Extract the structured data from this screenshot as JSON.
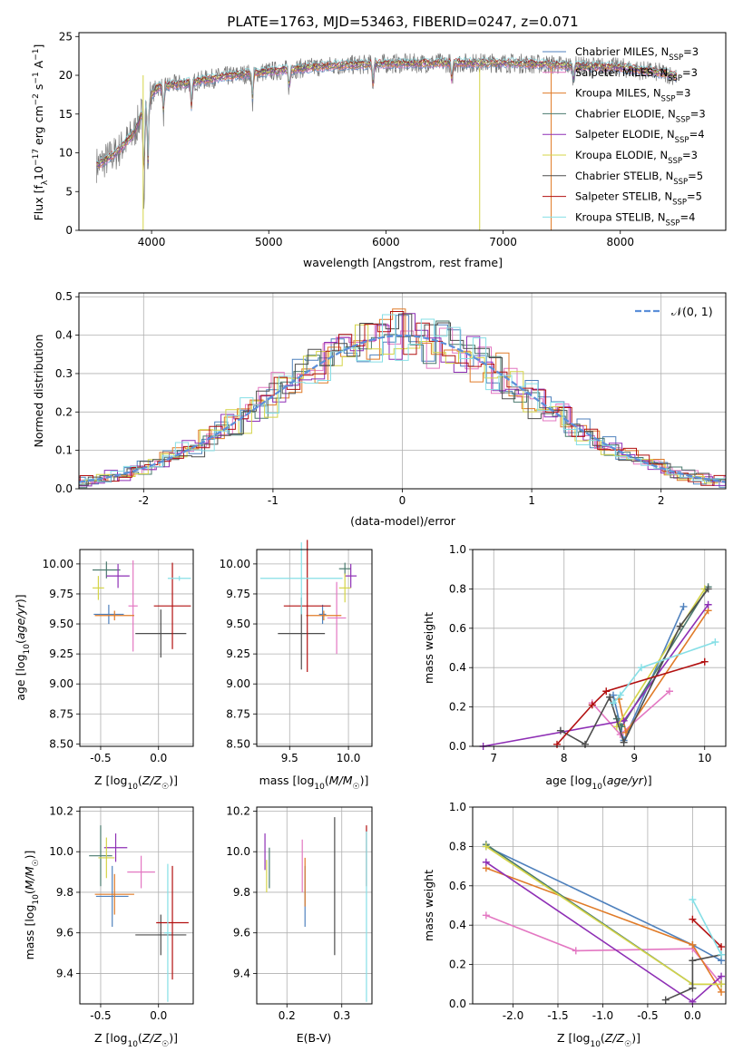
{
  "figure": {
    "title": "PLATE=1763, MJD=53463, FIBERID=0247, z=0.071"
  },
  "legend_models": [
    {
      "label": "Chabrier MILES, N",
      "sub": "SSP",
      "tail": "=3",
      "color": "#4f81bd"
    },
    {
      "label": "Salpeter MILES, N",
      "sub": "SSP",
      "tail": "=3",
      "color": "#e377c2"
    },
    {
      "label": "Kroupa MILES, N",
      "sub": "SSP",
      "tail": "=3",
      "color": "#e07b28"
    },
    {
      "label": "Chabrier ELODIE, N",
      "sub": "SSP",
      "tail": "=3",
      "color": "#4a7a6e"
    },
    {
      "label": "Salpeter ELODIE, N",
      "sub": "SSP",
      "tail": "=4",
      "color": "#8e2fb5"
    },
    {
      "label": "Kroupa ELODIE, N",
      "sub": "SSP",
      "tail": "=3",
      "color": "#d4d447"
    },
    {
      "label": "Chabrier STELIB, N",
      "sub": "SSP",
      "tail": "=5",
      "color": "#4d4d4d"
    },
    {
      "label": "Salpeter STELIB, N",
      "sub": "SSP",
      "tail": "=5",
      "color": "#b21010"
    },
    {
      "label": "Kroupa STELIB, N",
      "sub": "SSP",
      "tail": "=4",
      "color": "#86dfe6"
    }
  ],
  "chart_data": [
    {
      "id": "spectrum",
      "type": "line",
      "title": "PLATE=1763, MJD=53463, FIBERID=0247, z=0.071",
      "xlabel": "wavelength [Angstrom, rest frame]",
      "ylabel": "Flux [f_λ 10^-17 erg cm^-2 s^-1 A^-1]",
      "xlim": [
        3380,
        8900
      ],
      "ylim": [
        0,
        25.5
      ],
      "xticks": [
        4000,
        5000,
        6000,
        7000,
        8000
      ],
      "yticks": [
        0,
        5,
        10,
        15,
        20,
        25
      ],
      "continuum": {
        "x": [
          3550,
          3700,
          3850,
          3950,
          4050,
          4300,
          4600,
          5000,
          5500,
          6000,
          6500,
          7000,
          7400,
          7600,
          8000,
          8400,
          8500
        ],
        "y": [
          8.5,
          10.0,
          12.5,
          16.5,
          18.5,
          19.0,
          19.8,
          20.5,
          21.2,
          21.5,
          21.6,
          21.6,
          21.4,
          21.2,
          21.0,
          20.2,
          19.8
        ]
      },
      "absorption_features": [
        [
          3934,
          12
        ],
        [
          3969,
          10
        ],
        [
          4102,
          4
        ],
        [
          4340,
          4
        ],
        [
          4861,
          4
        ],
        [
          5175,
          3
        ],
        [
          5890,
          3
        ],
        [
          6563,
          3
        ],
        [
          7600,
          2
        ]
      ]
    },
    {
      "id": "residual_hist",
      "type": "histogram",
      "xlabel": "(data-model)/error",
      "ylabel": "Normed distribution",
      "xlim": [
        -2.5,
        2.5
      ],
      "ylim": [
        0,
        0.51
      ],
      "xticks": [
        -2,
        -1,
        0,
        1,
        2
      ],
      "yticks": [
        0.0,
        0.1,
        0.2,
        0.3,
        0.4,
        0.5
      ],
      "bin_width": 0.1,
      "series_name": "N(0,1)",
      "pdf_mean": 0,
      "pdf_sigma": 1
    },
    {
      "id": "age_vs_Z",
      "type": "errorbar",
      "xlabel": "Z [log10(Z/Z☉)]",
      "ylabel": "age [log10(age/yr)]",
      "xlim": [
        -0.68,
        0.3
      ],
      "ylim": [
        8.48,
        10.12
      ],
      "xticks": [
        -0.5,
        0.0
      ],
      "yticks": [
        8.5,
        8.75,
        9.0,
        9.25,
        9.5,
        9.75,
        10.0
      ],
      "points": [
        {
          "model": 0,
          "x": -0.43,
          "xerr": 0.13,
          "y": 9.58,
          "yerr": 0.08
        },
        {
          "model": 1,
          "x": -0.22,
          "xerr": 0.04,
          "y": 9.65,
          "yerr": 0.38
        },
        {
          "model": 2,
          "x": -0.38,
          "xerr": 0.17,
          "y": 9.57,
          "yerr": 0.04
        },
        {
          "model": 3,
          "x": -0.45,
          "xerr": 0.12,
          "y": 9.95,
          "yerr": 0.07
        },
        {
          "model": 4,
          "x": -0.35,
          "xerr": 0.1,
          "y": 9.9,
          "yerr": 0.1
        },
        {
          "model": 5,
          "x": -0.52,
          "xerr": 0.05,
          "y": 9.8,
          "yerr": 0.1
        },
        {
          "model": 6,
          "x": 0.02,
          "xerr": 0.22,
          "y": 9.42,
          "yerr": 0.2
        },
        {
          "model": 7,
          "x": 0.12,
          "xerr": 0.16,
          "y": 9.65,
          "yerr": 0.36
        },
        {
          "model": 8,
          "x": 0.18,
          "xerr": 0.1,
          "y": 9.88,
          "yerr": 0.02
        }
      ]
    },
    {
      "id": "age_vs_mass",
      "type": "errorbar",
      "xlabel": "mass [log10(M/M☉)]",
      "ylabel": "",
      "xlim": [
        9.22,
        10.2
      ],
      "ylim": [
        8.48,
        10.12
      ],
      "xticks": [
        9.5,
        10.0
      ],
      "yticks": [
        8.5,
        8.75,
        9.0,
        9.25,
        9.5,
        9.75,
        10.0
      ],
      "points": [
        {
          "model": 0,
          "x": 9.78,
          "xerr": 0.03,
          "y": 9.58,
          "yerr": 0.08
        },
        {
          "model": 1,
          "x": 9.9,
          "xerr": 0.08,
          "y": 9.55,
          "yerr": 0.3
        },
        {
          "model": 2,
          "x": 9.79,
          "xerr": 0.15,
          "y": 9.57,
          "yerr": 0.04
        },
        {
          "model": 3,
          "x": 9.97,
          "xerr": 0.05,
          "y": 9.96,
          "yerr": 0.05
        },
        {
          "model": 4,
          "x": 10.02,
          "xerr": 0.05,
          "y": 9.9,
          "yerr": 0.1
        },
        {
          "model": 5,
          "x": 9.97,
          "xerr": 0.05,
          "y": 9.8,
          "yerr": 0.12
        },
        {
          "model": 6,
          "x": 9.6,
          "xerr": 0.2,
          "y": 9.42,
          "yerr": 0.3
        },
        {
          "model": 7,
          "x": 9.65,
          "xerr": 0.2,
          "y": 9.65,
          "yerr": 0.55
        },
        {
          "model": 8,
          "x": 9.6,
          "xerr": 0.35,
          "y": 9.88,
          "yerr": 0.3
        }
      ]
    },
    {
      "id": "massweight_vs_age",
      "type": "line",
      "xlabel": "age [log10(age/yr)]",
      "ylabel": "mass weight",
      "xlim": [
        6.7,
        10.3
      ],
      "ylim": [
        0,
        1.0
      ],
      "xticks": [
        7,
        8,
        9,
        10
      ],
      "yticks": [
        0.0,
        0.2,
        0.4,
        0.6,
        0.8,
        1.0
      ],
      "series": [
        {
          "model": 0,
          "x": [
            8.7,
            8.85,
            9.7
          ],
          "y": [
            0.26,
            0.03,
            0.71
          ]
        },
        {
          "model": 1,
          "x": [
            8.4,
            8.8,
            9.5
          ],
          "y": [
            0.22,
            0.06,
            0.28
          ]
        },
        {
          "model": 2,
          "x": [
            8.78,
            8.88,
            10.05
          ],
          "y": [
            0.24,
            0.07,
            0.69
          ]
        },
        {
          "model": 3,
          "x": [
            8.75,
            8.82,
            10.05
          ],
          "y": [
            0.14,
            0.1,
            0.81
          ]
        },
        {
          "model": 4,
          "x": [
            6.85,
            8.85,
            10.05
          ],
          "y": [
            0.0,
            0.13,
            0.72
          ]
        },
        {
          "model": 5,
          "x": [
            8.75,
            10.0
          ],
          "y": [
            0.1,
            0.8
          ]
        },
        {
          "model": 6,
          "x": [
            7.95,
            8.3,
            8.65,
            8.85,
            9.65,
            10.05
          ],
          "y": [
            0.08,
            0.01,
            0.25,
            0.02,
            0.61,
            0.8
          ]
        },
        {
          "model": 7,
          "x": [
            7.9,
            8.4,
            8.6,
            10.0
          ],
          "y": [
            0.01,
            0.21,
            0.28,
            0.43
          ]
        },
        {
          "model": 8,
          "x": [
            8.7,
            8.8,
            9.1,
            10.15
          ],
          "y": [
            0.22,
            0.26,
            0.4,
            0.53
          ]
        }
      ]
    },
    {
      "id": "mass_vs_Z",
      "type": "errorbar",
      "xlabel": "Z [log10(Z/Z☉)]",
      "ylabel": "mass [log10(M/M☉)]",
      "xlim": [
        -0.68,
        0.3
      ],
      "ylim": [
        9.25,
        10.22
      ],
      "xticks": [
        -0.5,
        0.0
      ],
      "yticks": [
        9.4,
        9.6,
        9.8,
        10.0,
        10.2
      ],
      "points": [
        {
          "model": 0,
          "x": -0.4,
          "xerr": 0.14,
          "y": 9.78,
          "yerr": 0.15
        },
        {
          "model": 1,
          "x": -0.15,
          "xerr": 0.12,
          "y": 9.9,
          "yerr": 0.08
        },
        {
          "model": 2,
          "x": -0.38,
          "xerr": 0.17,
          "y": 9.79,
          "yerr": 0.1
        },
        {
          "model": 3,
          "x": -0.5,
          "xerr": 0.1,
          "y": 9.98,
          "yerr": 0.15
        },
        {
          "model": 4,
          "x": -0.37,
          "xerr": 0.1,
          "y": 10.02,
          "yerr": 0.07
        },
        {
          "model": 5,
          "x": -0.45,
          "xerr": 0.07,
          "y": 9.97,
          "yerr": 0.1
        },
        {
          "model": 6,
          "x": 0.02,
          "xerr": 0.22,
          "y": 9.59,
          "yerr": 0.1
        },
        {
          "model": 7,
          "x": 0.12,
          "xerr": 0.14,
          "y": 9.65,
          "yerr": 0.28
        },
        {
          "model": 8,
          "x": 0.08,
          "xerr": 0.03,
          "y": 9.6,
          "yerr": 0.34
        }
      ]
    },
    {
      "id": "mass_vs_ebv",
      "type": "errorbar",
      "xlabel": "E(B-V)",
      "ylabel": "",
      "xlim": [
        0.145,
        0.355
      ],
      "ylim": [
        9.25,
        10.22
      ],
      "xticks": [
        0.2,
        0.3
      ],
      "yticks": [
        9.4,
        9.6,
        9.8,
        10.0,
        10.2
      ],
      "points": [
        {
          "model": 0,
          "x": 0.233,
          "xerr": 0,
          "y": 9.78,
          "yerr": 0.15
        },
        {
          "model": 1,
          "x": 0.228,
          "xerr": 0,
          "y": 9.93,
          "yerr": 0.13
        },
        {
          "model": 2,
          "x": 0.233,
          "xerr": 0,
          "y": 9.85,
          "yerr": 0.12
        },
        {
          "model": 3,
          "x": 0.168,
          "xerr": 0,
          "y": 9.92,
          "yerr": 0.1
        },
        {
          "model": 4,
          "x": 0.16,
          "xerr": 0,
          "y": 10.0,
          "yerr": 0.09
        },
        {
          "model": 5,
          "x": 0.163,
          "xerr": 0,
          "y": 9.88,
          "yerr": 0.08
        },
        {
          "model": 6,
          "x": 0.287,
          "xerr": 0,
          "y": 9.83,
          "yerr": 0.34
        },
        {
          "model": 7,
          "x": 0.345,
          "xerr": 0,
          "y": 9.98,
          "yerr": 0.15
        },
        {
          "model": 8,
          "x": 0.345,
          "xerr": 0,
          "y": 9.68,
          "yerr": 0.42
        }
      ]
    },
    {
      "id": "massweight_vs_Z",
      "type": "line",
      "xlabel": "Z [log10(Z/Z☉)]",
      "ylabel": "mass weight",
      "xlim": [
        -2.45,
        0.37
      ],
      "ylim": [
        0,
        1.0
      ],
      "xticks": [
        -2.0,
        -1.5,
        -1.0,
        -0.5,
        0.0
      ],
      "yticks": [
        0.0,
        0.2,
        0.4,
        0.6,
        0.8,
        1.0
      ],
      "series": [
        {
          "model": 0,
          "x": [
            -2.3,
            0.0,
            0.32
          ],
          "y": [
            0.8,
            0.3,
            0.22
          ]
        },
        {
          "model": 1,
          "x": [
            -2.3,
            -1.3,
            0.0,
            0.32
          ],
          "y": [
            0.45,
            0.27,
            0.28,
            0.1
          ]
        },
        {
          "model": 2,
          "x": [
            -2.3,
            0.0,
            0.32
          ],
          "y": [
            0.69,
            0.3,
            0.06
          ]
        },
        {
          "model": 3,
          "x": [
            -2.3,
            0.0,
            0.32
          ],
          "y": [
            0.81,
            0.1,
            0.1
          ]
        },
        {
          "model": 4,
          "x": [
            -2.3,
            0.0,
            0.32
          ],
          "y": [
            0.72,
            0.01,
            0.14
          ]
        },
        {
          "model": 5,
          "x": [
            -2.3,
            0.0,
            0.32
          ],
          "y": [
            0.8,
            0.1,
            0.1
          ]
        },
        {
          "model": 6,
          "x": [
            -0.3,
            0.0,
            0.0,
            0.32
          ],
          "y": [
            0.02,
            0.08,
            0.22,
            0.25
          ]
        },
        {
          "model": 7,
          "x": [
            0.0,
            0.32
          ],
          "y": [
            0.43,
            0.29
          ]
        },
        {
          "model": 8,
          "x": [
            0.0,
            0.32
          ],
          "y": [
            0.53,
            0.25
          ]
        }
      ]
    }
  ]
}
